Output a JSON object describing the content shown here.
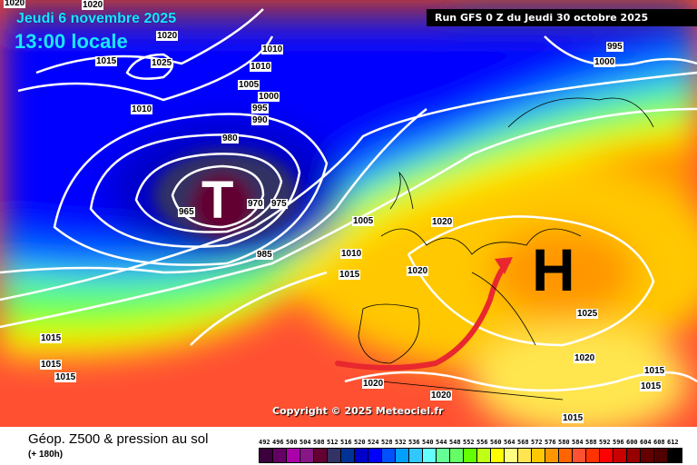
{
  "header": {
    "date": "Jeudi 6 novembre 2025",
    "time": "13:00 locale",
    "run": "Run GFS 0 Z du Jeudi 30 octobre 2025"
  },
  "map": {
    "low_symbol": "T",
    "high_symbol": "H",
    "copyright": "Copyright © 2025 Meteociel.fr",
    "isobar_labels": [
      "1020",
      "1020",
      "1020",
      "1015",
      "1025",
      "1010",
      "1010",
      "1005",
      "1000",
      "995",
      "990",
      "1010",
      "980",
      "965",
      "970",
      "975",
      "985",
      "1005",
      "1010",
      "1015",
      "1020",
      "1020",
      "1015",
      "1015",
      "1015",
      "1020",
      "1020",
      "1025",
      "1020",
      "1015",
      "1015",
      "1015",
      "995",
      "1000"
    ],
    "arrow_color": "#e8282e"
  },
  "footer": {
    "title": "Géop. Z500 & pression au sol",
    "subtitle": "(+ 180h)"
  },
  "legend": {
    "labels": [
      "492",
      "496",
      "500",
      "504",
      "508",
      "512",
      "516",
      "520",
      "524",
      "528",
      "532",
      "536",
      "540",
      "544",
      "548",
      "552",
      "556",
      "560",
      "564",
      "568",
      "572",
      "576",
      "580",
      "584",
      "588",
      "592",
      "596",
      "600",
      "604",
      "608",
      "612"
    ],
    "colors": [
      "#3c003c",
      "#640064",
      "#aa00aa",
      "#871687",
      "#640032",
      "#323264",
      "#003296",
      "#0000c8",
      "#0000ff",
      "#0050ff",
      "#00a0ff",
      "#32c8ff",
      "#64ffff",
      "#64ff96",
      "#64ff64",
      "#64ff00",
      "#c0ff16",
      "#ffff00",
      "#ffff80",
      "#ffe650",
      "#ffc800",
      "#ff9600",
      "#ff6400",
      "#ff5032",
      "#ff3200",
      "#ff0000",
      "#c80000",
      "#960000",
      "#640000",
      "#500000",
      "#000000"
    ]
  }
}
